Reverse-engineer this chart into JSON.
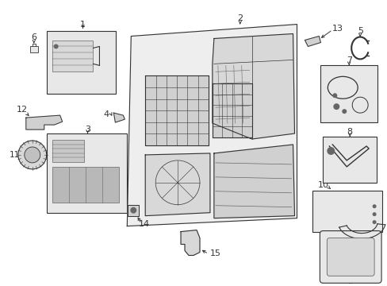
{
  "bg_color": "#ffffff",
  "line_color": "#333333",
  "fill_gray": "#e8e8e8",
  "mid_gray": "#aaaaaa",
  "dark_gray": "#666666",
  "fig_width": 4.89,
  "fig_height": 3.6,
  "dpi": 100
}
